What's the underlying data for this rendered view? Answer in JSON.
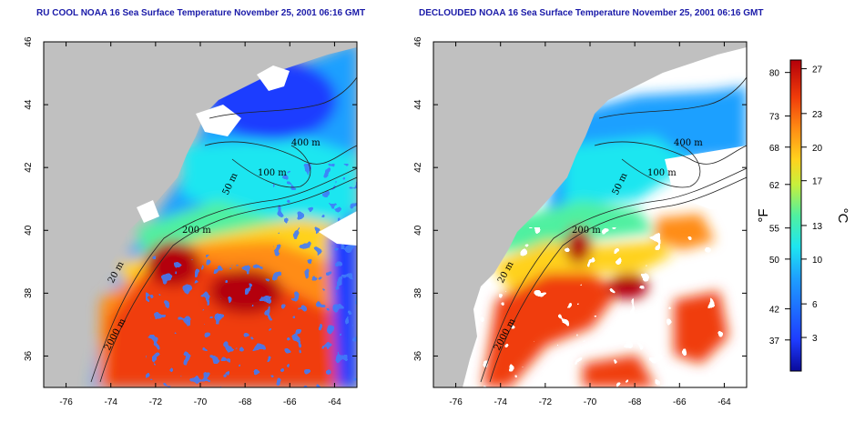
{
  "titles": {
    "left": "RU COOL NOAA 16 Sea Surface Temperature November 25, 2001 06:16 GMT",
    "right": "DECLOUDED NOAA 16 Sea Surface Temperature November 25, 2001 06:16 GMT"
  },
  "map": {
    "lon_ticks": [
      "-76",
      "-74",
      "-72",
      "-70",
      "-68",
      "-66",
      "-64"
    ],
    "lat_ticks": [
      "36",
      "38",
      "40",
      "42",
      "44",
      "46"
    ],
    "contour_labels": [
      "400 m",
      "100 m",
      "50 m",
      "200 m",
      "20 m",
      "2000 m"
    ],
    "land_color": "#c0c0c0",
    "cloud_color": "#ffffff"
  },
  "colorbar": {
    "fahrenheit_label": "°F",
    "celsius_label": "°C",
    "fahrenheit_ticks": [
      "80",
      "73",
      "68",
      "62",
      "55",
      "50",
      "42",
      "37"
    ],
    "celsius_ticks": [
      "27",
      "23",
      "20",
      "17",
      "13",
      "10",
      "6",
      "3"
    ],
    "colors": [
      "#0a0a9a",
      "#1e3cff",
      "#1ea0ff",
      "#1ee6f0",
      "#50f0a0",
      "#c8f03c",
      "#ffd21e",
      "#ff8c14",
      "#f03c0a",
      "#b4000a"
    ]
  }
}
